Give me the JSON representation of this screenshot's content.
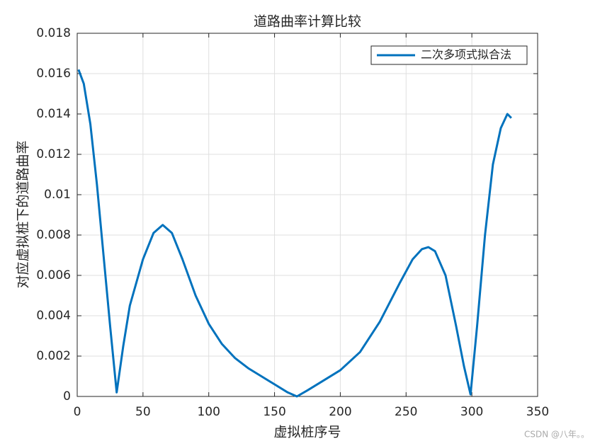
{
  "chart_data": {
    "type": "line",
    "title": "道路曲率计算比较",
    "x_label": "虚拟桩序号",
    "y_label": "对应虚拟桩下的道路曲率",
    "x": [
      1,
      5,
      10,
      15,
      20,
      25,
      30,
      35,
      40,
      50,
      58,
      65,
      72,
      80,
      90,
      100,
      110,
      120,
      130,
      140,
      150,
      160,
      167,
      175,
      185,
      200,
      215,
      230,
      245,
      255,
      262,
      267,
      272,
      280,
      288,
      294,
      299,
      304,
      310,
      316,
      322,
      327,
      330
    ],
    "series": [
      {
        "name": "二次多项式拟合法",
        "color": "#0072bd",
        "values": [
          0.0162,
          0.0155,
          0.0135,
          0.0105,
          0.007,
          0.0035,
          0.0002,
          0.0025,
          0.0045,
          0.0068,
          0.0081,
          0.0085,
          0.0081,
          0.0068,
          0.005,
          0.0036,
          0.0026,
          0.0019,
          0.0014,
          0.001,
          0.0006,
          0.0002,
          0,
          0.0003,
          0.0007,
          0.0013,
          0.0022,
          0.0037,
          0.0056,
          0.0068,
          0.0073,
          0.0074,
          0.0072,
          0.006,
          0.0035,
          0.0015,
          0.0001,
          0.0035,
          0.008,
          0.0115,
          0.0133,
          0.014,
          0.0138
        ]
      }
    ],
    "xlim": [
      0,
      350
    ],
    "xticks": [
      0,
      50,
      100,
      150,
      200,
      250,
      300,
      350
    ],
    "ylim": [
      0,
      0.018
    ],
    "yticks": [
      0,
      0.002,
      0.004,
      0.006,
      0.008,
      0.01,
      0.012,
      0.014,
      0.016,
      0.018
    ],
    "grid": true,
    "legend": "northeast"
  },
  "watermark": "CSDN @八年。。"
}
